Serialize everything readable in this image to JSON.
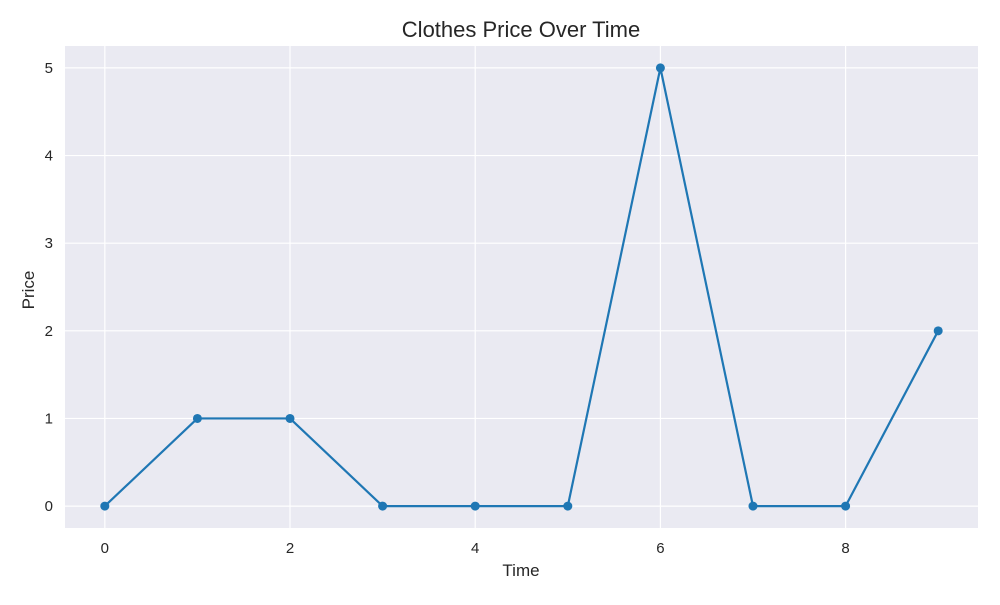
{
  "chart_data": {
    "type": "line",
    "title": "Clothes Price Over Time",
    "xlabel": "Time",
    "ylabel": "Price",
    "x": [
      0,
      1,
      2,
      3,
      4,
      5,
      6,
      7,
      8,
      9
    ],
    "series": [
      {
        "values": [
          0,
          1,
          1,
          0,
          0,
          0,
          5,
          0,
          0,
          2
        ]
      }
    ],
    "xlim": [
      -0.43,
      9.43
    ],
    "ylim": [
      -0.25,
      5.25
    ],
    "xticks": [
      0,
      2,
      4,
      6,
      8
    ],
    "yticks": [
      0,
      1,
      2,
      3,
      4,
      5
    ],
    "grid": true,
    "markers": true,
    "legend": "none",
    "colors": {
      "line": "#1f77b4",
      "plot_background": "#eaeaf2",
      "grid": "#ffffff",
      "text": "#262626"
    }
  }
}
